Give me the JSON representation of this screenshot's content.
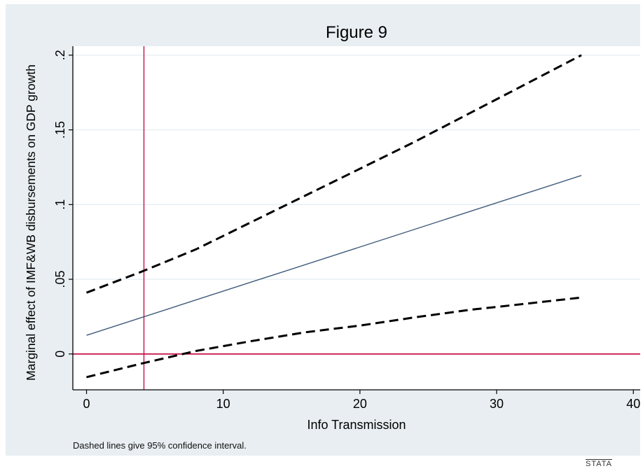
{
  "chart_data": {
    "type": "line",
    "title": "Figure 9",
    "xlabel": "Info Transmission",
    "ylabel": "Marginal effect of IMF&WB disbursements on GDP growth",
    "note": "Dashed lines give 95% confidence interval.",
    "xlim": [
      -1,
      40.5
    ],
    "ylim": [
      -0.024,
      0.206
    ],
    "xticks": [
      0,
      10,
      20,
      30,
      40
    ],
    "xtick_labels": [
      "0",
      "10",
      "20",
      "30",
      "40"
    ],
    "yticks": [
      0,
      0.05,
      0.1,
      0.15,
      0.2
    ],
    "ytick_labels": [
      "0",
      ".05",
      ".1",
      ".15",
      ".2"
    ],
    "grid": true,
    "series": [
      {
        "style": "solid",
        "color": "#3f5a7a",
        "x": [
          0,
          36.2
        ],
        "y": [
          0.0125,
          0.1195
        ]
      },
      {
        "style": "dashed",
        "color": "#000000",
        "x": [
          0,
          4,
          8,
          12,
          16,
          20,
          24,
          28,
          32,
          36.2
        ],
        "y": [
          0.041,
          0.055,
          0.07,
          0.088,
          0.106,
          0.124,
          0.142,
          0.161,
          0.18,
          0.2
        ]
      },
      {
        "style": "dashed",
        "color": "#000000",
        "x": [
          0,
          4,
          8,
          12,
          16,
          20,
          24,
          28,
          32,
          36.2
        ],
        "y": [
          -0.0155,
          -0.0065,
          0.002,
          0.0085,
          0.0145,
          0.019,
          0.0245,
          0.0295,
          0.0335,
          0.0378
        ]
      }
    ],
    "reference_lines": [
      {
        "orientation": "vertical",
        "value": 4.2,
        "color": "#c4003c"
      },
      {
        "orientation": "horizontal",
        "value": 0,
        "color": "#c4003c"
      }
    ]
  },
  "brand": "STATA"
}
